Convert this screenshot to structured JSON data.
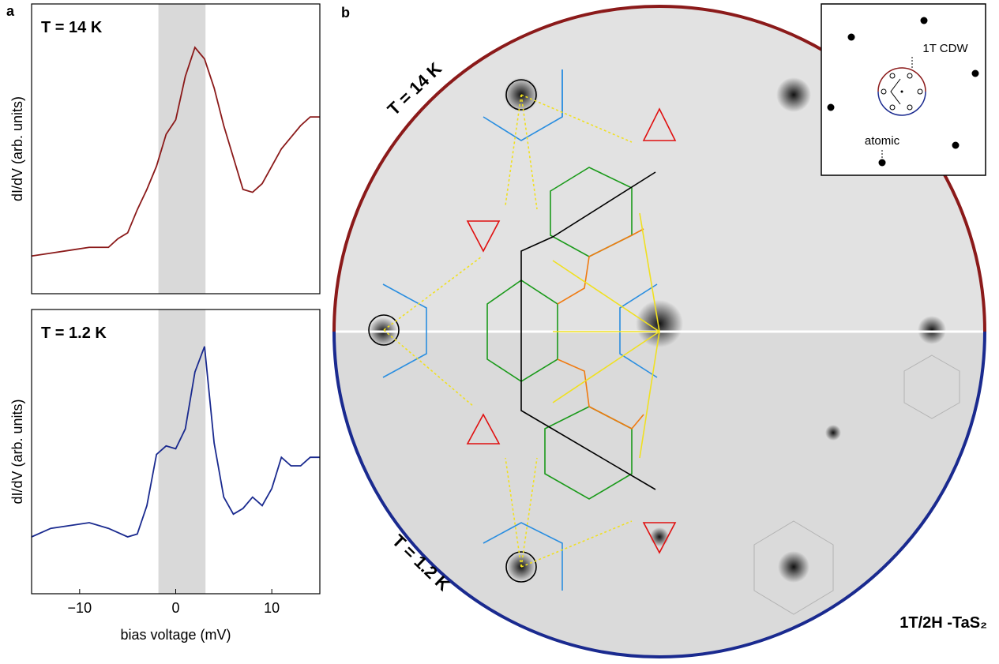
{
  "chart_data": [
    {
      "type": "line",
      "panel_label": "a",
      "annotation": "T = 14 K",
      "ylabel": "dI/dV (arb. units)",
      "color": "#8b1a1a",
      "highlight_span": [
        -1.8,
        3.1
      ],
      "x": [
        -15,
        -13,
        -11,
        -9,
        -7,
        -6,
        -5,
        -4,
        -3,
        -2,
        -1,
        0,
        1,
        2,
        3,
        4,
        5,
        6,
        7,
        8,
        9,
        10,
        11,
        12,
        13,
        14,
        15
      ],
      "values": [
        0.13,
        0.14,
        0.15,
        0.16,
        0.16,
        0.19,
        0.21,
        0.29,
        0.36,
        0.44,
        0.55,
        0.6,
        0.75,
        0.85,
        0.81,
        0.71,
        0.58,
        0.47,
        0.36,
        0.35,
        0.38,
        0.44,
        0.5,
        0.54,
        0.58,
        0.61,
        0.61
      ],
      "xlim": [
        -15,
        15
      ],
      "ylim": [
        0,
        1
      ]
    },
    {
      "type": "line",
      "annotation": "T = 1.2 K",
      "ylabel": "dI/dV (arb. units)",
      "xlabel": "bias voltage (mV)",
      "color": "#1a2a8f",
      "highlight_span": [
        -1.8,
        3.1
      ],
      "x": [
        -15,
        -13,
        -11,
        -9,
        -7,
        -5,
        -4,
        -3,
        -2,
        -1,
        0,
        1,
        2,
        3,
        4,
        5,
        6,
        7,
        8,
        9,
        10,
        11,
        12,
        13,
        14,
        15
      ],
      "values": [
        0.2,
        0.23,
        0.24,
        0.25,
        0.23,
        0.2,
        0.21,
        0.31,
        0.49,
        0.52,
        0.51,
        0.58,
        0.78,
        0.87,
        0.53,
        0.34,
        0.28,
        0.3,
        0.34,
        0.31,
        0.37,
        0.48,
        0.45,
        0.45,
        0.48,
        0.48
      ],
      "xlim": [
        -15,
        15
      ],
      "ylim": [
        0,
        1
      ],
      "xticks": [
        {
          "value": -10,
          "label": "−10"
        },
        0,
        10
      ]
    }
  ],
  "panel_b": {
    "panel_label": "b",
    "top_label": "T = 14 K",
    "bottom_label": "T = 1.2 K",
    "material": "1T/2H -TaS₂",
    "inset": {
      "cdw_label": "1T CDW",
      "atomic_label": "atomic"
    }
  }
}
